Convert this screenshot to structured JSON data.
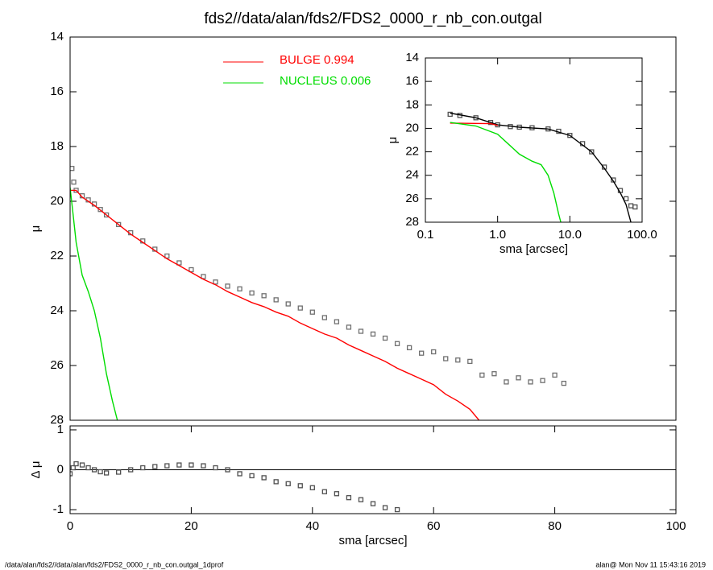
{
  "chart_data": [
    {
      "type": "line",
      "title": "fds2//data/alan/fds2/FDS2_0000_r_nb_con.outgal",
      "ylabel": "μ",
      "xlim": [
        0,
        100
      ],
      "ylim": [
        28,
        14
      ],
      "yticks": [
        14,
        16,
        18,
        20,
        22,
        24,
        26,
        28
      ],
      "legend": "upper left",
      "series": [
        {
          "color": "#707070",
          "style": "squares",
          "x": [
            0.3,
            0.6,
            1,
            2,
            3,
            4,
            5,
            6,
            8,
            10,
            12,
            14,
            16,
            18,
            20,
            22,
            24,
            26,
            28,
            30,
            32,
            34,
            36,
            38,
            40,
            42,
            44,
            46,
            48,
            50,
            52,
            54,
            56,
            58,
            60,
            62,
            64,
            66,
            68,
            70,
            72,
            74,
            76,
            78,
            80,
            81.5
          ],
          "values": [
            18.8,
            19.3,
            19.6,
            19.8,
            19.95,
            20.1,
            20.3,
            20.5,
            20.85,
            21.15,
            21.45,
            21.75,
            22.0,
            22.25,
            22.5,
            22.75,
            22.95,
            23.1,
            23.2,
            23.35,
            23.45,
            23.6,
            23.75,
            23.9,
            24.05,
            24.25,
            24.4,
            24.6,
            24.75,
            24.85,
            25.0,
            25.2,
            25.35,
            25.55,
            25.5,
            25.75,
            25.8,
            25.85,
            26.35,
            26.3,
            26.6,
            26.45,
            26.6,
            26.55,
            26.35,
            26.65
          ]
        },
        {
          "name": "BULGE  0.994",
          "color": "#ff0000",
          "style": "line",
          "x": [
            0,
            1,
            2,
            4,
            6,
            8,
            10,
            12,
            14,
            16,
            18,
            20,
            22,
            24,
            26,
            28,
            30,
            32,
            34,
            36,
            38,
            40,
            42,
            44,
            46,
            48,
            50,
            52,
            54,
            56,
            58,
            60,
            62,
            64,
            66,
            67.5
          ],
          "values": [
            19.6,
            19.6,
            19.85,
            20.15,
            20.5,
            20.85,
            21.2,
            21.5,
            21.8,
            22.1,
            22.35,
            22.6,
            22.85,
            23.05,
            23.3,
            23.5,
            23.7,
            23.85,
            24.05,
            24.2,
            24.45,
            24.65,
            24.85,
            25.0,
            25.25,
            25.45,
            25.65,
            25.85,
            26.1,
            26.3,
            26.5,
            26.7,
            27.05,
            27.3,
            27.6,
            28
          ]
        },
        {
          "name": "NUCLEUS  0.006",
          "color": "#00dd00",
          "style": "line",
          "x": [
            0,
            0.5,
            1,
            2,
            3,
            4,
            5,
            6,
            7,
            7.8
          ],
          "values": [
            19.5,
            20.5,
            21.5,
            22.7,
            23.3,
            24.0,
            25.0,
            26.3,
            27.3,
            28
          ]
        }
      ]
    },
    {
      "type": "line",
      "xlabel": "sma [arcsec]",
      "ylabel": "μ",
      "xlog": true,
      "xlim": [
        0.1,
        100
      ],
      "ylim": [
        28,
        14
      ],
      "xticks": [
        0.1,
        {
          "value": 1,
          "label": "1.0"
        },
        {
          "value": 10,
          "label": "10.0"
        },
        {
          "value": 100,
          "label": "100.0"
        }
      ],
      "yticks": [
        14,
        16,
        18,
        20,
        22,
        24,
        26,
        28
      ],
      "series": [
        {
          "color": "#505050",
          "style": "squares",
          "x": [
            0.22,
            0.3,
            0.5,
            0.8,
            1,
            1.5,
            2,
            3,
            5,
            7,
            10,
            15,
            20,
            30,
            40,
            50,
            60,
            70,
            80
          ],
          "values": [
            18.8,
            18.9,
            19.1,
            19.5,
            19.7,
            19.85,
            19.9,
            19.95,
            20.05,
            20.25,
            20.6,
            21.3,
            22.0,
            23.3,
            24.4,
            25.3,
            26.0,
            26.6,
            26.7
          ]
        },
        {
          "color": "#000000",
          "style": "line",
          "x": [
            0.22,
            0.5,
            1,
            2,
            5,
            10,
            20,
            30,
            40,
            50,
            60,
            70
          ],
          "values": [
            18.7,
            19.1,
            19.7,
            19.9,
            20.05,
            20.6,
            22.0,
            23.4,
            24.5,
            25.5,
            26.5,
            28
          ]
        },
        {
          "color": "#ff0000",
          "style": "line",
          "x": [
            0.22,
            0.8,
            1
          ],
          "values": [
            19.55,
            19.6,
            19.75
          ]
        },
        {
          "color": "#00dd00",
          "style": "line",
          "x": [
            0.22,
            0.5,
            1,
            2,
            3,
            4,
            5,
            6,
            7,
            7.5
          ],
          "values": [
            19.5,
            19.8,
            20.5,
            22.2,
            22.8,
            23.1,
            24.0,
            25.5,
            27.3,
            28
          ]
        }
      ]
    },
    {
      "type": "line",
      "xlabel": "sma [arcsec]",
      "ylabel": "Δ μ",
      "xlim": [
        0,
        100
      ],
      "ylim": [
        -1.1,
        1.1
      ],
      "xticks": [
        0,
        20,
        40,
        60,
        80,
        100
      ],
      "yticks": [
        -1,
        0,
        1
      ],
      "series": [
        {
          "color": "#505050",
          "style": "squares",
          "x": [
            0,
            0.5,
            1,
            2,
            3,
            4,
            5,
            6,
            8,
            10,
            12,
            14,
            16,
            18,
            20,
            22,
            24,
            26,
            28,
            30,
            32,
            34,
            36,
            38,
            40,
            42,
            44,
            46,
            48,
            50,
            52,
            54
          ],
          "values": [
            -0.1,
            0.05,
            0.15,
            0.12,
            0.05,
            0,
            -0.05,
            -0.08,
            -0.06,
            0,
            0.05,
            0.08,
            0.1,
            0.12,
            0.12,
            0.1,
            0.05,
            0,
            -0.1,
            -0.15,
            -0.2,
            -0.3,
            -0.35,
            -0.4,
            -0.45,
            -0.55,
            -0.6,
            -0.7,
            -0.75,
            -0.85,
            -0.95,
            -1.0
          ]
        }
      ]
    }
  ],
  "footer": {
    "left": "/data/alan/fds2//data/alan/fds2/FDS2_0000_r_nb_con.outgal_1dprof",
    "right": "alan@  Mon Nov 11 15:43:16 2019"
  }
}
